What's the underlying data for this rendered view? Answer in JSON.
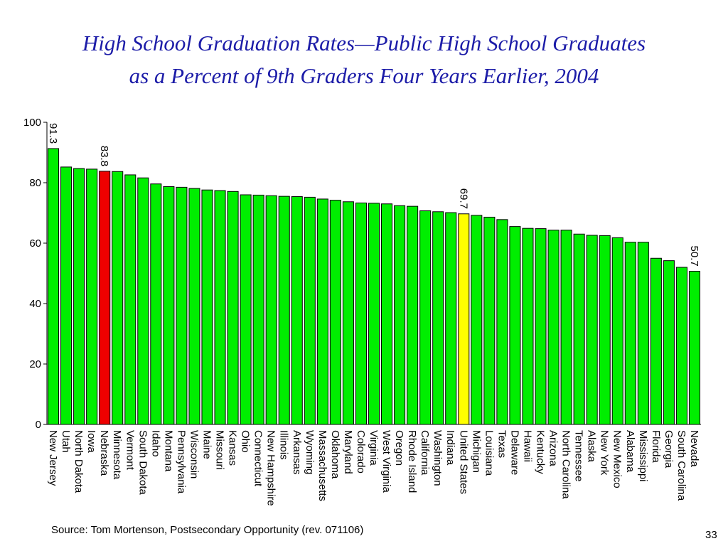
{
  "slide": {
    "title_line1": "High School Graduation Rates—Public High School Graduates",
    "title_line2": "as a Percent of 9th Graders Four Years Earlier, 2004",
    "source": "Source:  Tom Mortenson, Postsecondary Opportunity (rev. 071106)",
    "page_number": "33"
  },
  "chart_data": {
    "type": "bar",
    "title": "High School Graduation Rates—Public High School Graduates as a Percent of 9th Graders Four Years Earlier, 2004",
    "xlabel": "",
    "ylabel": "",
    "ylim": [
      0,
      100
    ],
    "yticks": [
      0,
      20,
      40,
      60,
      80,
      100
    ],
    "grid": false,
    "categories": [
      "New Jersey",
      "Utah",
      "North Dakota",
      "Iowa",
      "Nebraska",
      "Minnesota",
      "Vermont",
      "South Dakota",
      "Idaho",
      "Montana",
      "Pennsylvania",
      "Wisconsin",
      "Maine",
      "Missouri",
      "Kansas",
      "Ohio",
      "Connecticut",
      "New Hampshire",
      "Illinois",
      "Arkansas",
      "Wyoming",
      "Massachusetts",
      "Oklahoma",
      "Maryland",
      "Colorado",
      "Virginia",
      "West Virginia",
      "Oregon",
      "Rhode Island",
      "California",
      "Washington",
      "Indiana",
      "United States",
      "Michigan",
      "Louisiana",
      "Texas",
      "Delaware",
      "Hawaii",
      "Kentucky",
      "Arizona",
      "North Carolina",
      "Tennessee",
      "Alaska",
      "New York",
      "New Mexico",
      "Alabama",
      "Mississippi",
      "Florida",
      "Georgia",
      "South Carolina",
      "Nevada"
    ],
    "values": [
      91.3,
      85.2,
      84.7,
      84.5,
      83.8,
      83.7,
      82.6,
      81.6,
      79.6,
      78.7,
      78.5,
      78.1,
      77.6,
      77.4,
      77.1,
      76.0,
      75.9,
      75.7,
      75.5,
      75.4,
      75.2,
      74.6,
      74.2,
      73.7,
      73.3,
      73.2,
      73.0,
      72.4,
      72.2,
      70.7,
      70.4,
      70.1,
      69.7,
      69.2,
      68.6,
      67.8,
      65.5,
      64.9,
      64.8,
      64.3,
      64.3,
      63.0,
      62.6,
      62.5,
      61.8,
      60.3,
      60.3,
      55.0,
      54.2,
      52.0,
      50.7
    ],
    "bar_colors": {
      "default": "#00ee00",
      "highlight_nebraska": "#ee0000",
      "highlight_us": "#ffff00",
      "outline": "#000000"
    },
    "highlights": {
      "Nebraska": "red",
      "United States": "yellow"
    },
    "data_labels": [
      {
        "category": "New Jersey",
        "text": "91.3"
      },
      {
        "category": "Nebraska",
        "text": "83.8"
      },
      {
        "category": "United States",
        "text": "69.7"
      },
      {
        "category": "Nevada",
        "text": "50.7"
      }
    ]
  }
}
